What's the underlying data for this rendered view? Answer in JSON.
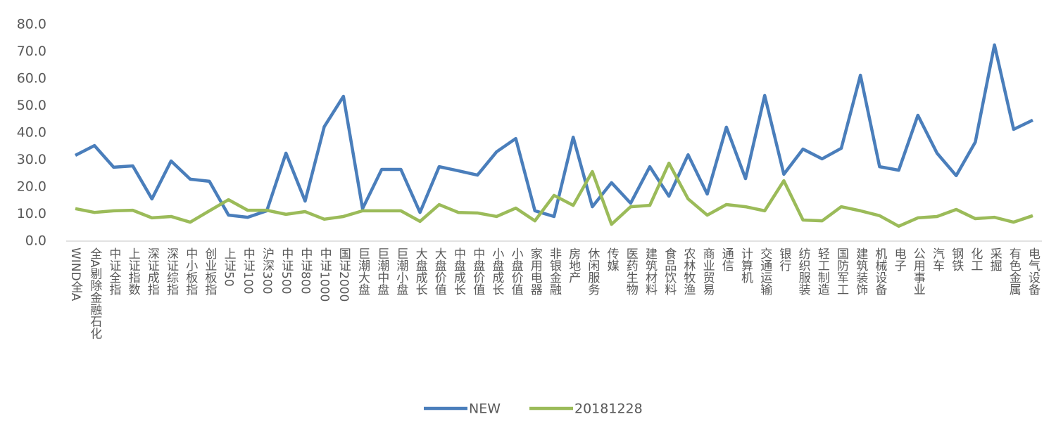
{
  "chart_data": {
    "type": "line",
    "categories": [
      "WIND全A",
      "全A剔除金融石化",
      "中证全指",
      "上证指数",
      "深证成指",
      "深证综指",
      "中小板指",
      "创业板指",
      "上证50",
      "中证100",
      "沪深300",
      "中证500",
      "中证800",
      "中证1000",
      "国证2000",
      "巨潮大盘",
      "巨潮中盘",
      "巨潮小盘",
      "大盘成长",
      "大盘价值",
      "中盘成长",
      "中盘价值",
      "小盘成长",
      "小盘价值",
      "家用电器",
      "非银金融",
      "房地产",
      "休闲服务",
      "传媒",
      "医药生物",
      "建筑材料",
      "食品饮料",
      "农林牧渔",
      "商业贸易",
      "通信",
      "计算机",
      "交通运输",
      "银行",
      "纺织服装",
      "轻工制造",
      "国防军工",
      "建筑装饰",
      "机械设备",
      "电子",
      "公用事业",
      "汽车",
      "钢铁",
      "化工",
      "采掘",
      "有色金属",
      "电气设备"
    ],
    "series": [
      {
        "name": "NEW",
        "color": "#4a7ebb",
        "values": [
          31.7,
          35.3,
          27.3,
          27.8,
          15.6,
          29.6,
          22.9,
          22.1,
          9.6,
          8.8,
          11.2,
          32.5,
          14.8,
          42.3,
          53.5,
          12.0,
          26.5,
          26.5,
          10.6,
          27.5,
          26.0,
          24.4,
          33.0,
          37.9,
          11.2,
          9.1,
          38.4,
          12.7,
          21.6,
          14.0,
          27.5,
          16.6,
          31.9,
          17.4,
          42.1,
          23.1,
          53.8,
          24.7,
          34.0,
          30.4,
          34.3,
          61.3,
          27.5,
          26.2,
          46.5,
          32.5,
          24.2,
          36.6,
          72.5,
          41.3,
          44.7
        ]
      },
      {
        "name": "20181228",
        "color": "#9bbb59",
        "values": [
          12.0,
          10.6,
          11.2,
          11.4,
          8.6,
          9.1,
          7.0,
          11.2,
          15.3,
          11.4,
          11.4,
          9.9,
          10.9,
          8.1,
          9.1,
          11.2,
          11.2,
          11.2,
          7.3,
          13.5,
          10.6,
          10.4,
          9.1,
          12.2,
          7.5,
          16.9,
          13.2,
          25.7,
          6.2,
          12.7,
          13.2,
          28.8,
          15.6,
          9.6,
          13.5,
          12.7,
          11.2,
          22.3,
          7.8,
          7.5,
          12.7,
          11.2,
          9.4,
          5.5,
          8.6,
          9.1,
          11.7,
          8.3,
          8.8,
          7.0,
          9.4
        ]
      }
    ],
    "ylim": [
      0,
      80
    ],
    "yticks": [
      {
        "value": 0,
        "label": "0.0"
      },
      {
        "value": 10,
        "label": "10.0"
      },
      {
        "value": 20,
        "label": "20.0"
      },
      {
        "value": 30,
        "label": "30.0"
      },
      {
        "value": 40,
        "label": "40.0"
      },
      {
        "value": 50,
        "label": "50.0"
      },
      {
        "value": 60,
        "label": "60.0"
      },
      {
        "value": 70,
        "label": "70.0"
      },
      {
        "value": 80,
        "label": "80.0"
      }
    ],
    "legend": "bottom"
  }
}
